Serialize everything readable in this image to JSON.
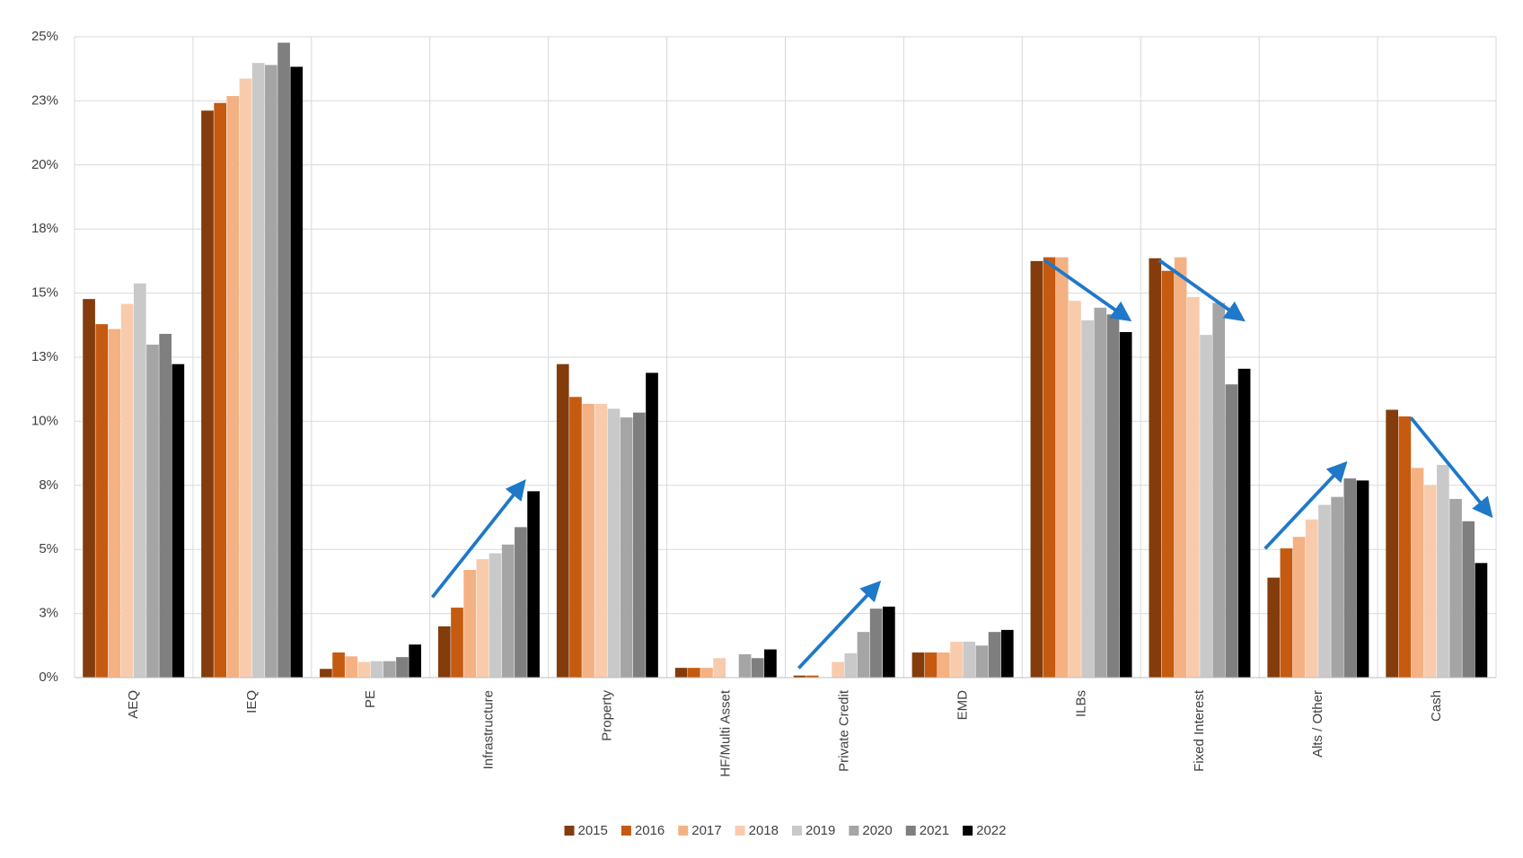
{
  "chart_data": {
    "type": "bar",
    "categories": [
      "AEQ",
      "IEQ",
      "PE",
      "Infrastructure",
      "Property",
      "HF/Multi Asset",
      "Private Credit",
      "EMD",
      "ILBs",
      "Fixed Interest",
      "Alts / Other",
      "Cash"
    ],
    "series": [
      {
        "name": "2015",
        "color": "#843c0c",
        "values": [
          14.77,
          22.12,
          0.34,
          2.0,
          12.23,
          0.38,
          0.08,
          0.98,
          16.25,
          16.36,
          3.9,
          10.45
        ]
      },
      {
        "name": "2016",
        "color": "#c55a11",
        "values": [
          13.79,
          22.42,
          0.98,
          2.73,
          10.95,
          0.38,
          0.08,
          0.98,
          16.4,
          15.87,
          5.04,
          10.19
        ]
      },
      {
        "name": "2017",
        "color": "#f4b183",
        "values": [
          13.6,
          22.69,
          0.83,
          4.2,
          10.68,
          0.38,
          0,
          0.98,
          16.4,
          16.4,
          5.49,
          8.18
        ]
      },
      {
        "name": "2018",
        "color": "#f8cbad",
        "values": [
          14.58,
          23.37,
          0.61,
          4.62,
          10.68,
          0.76,
          0.61,
          1.4,
          14.7,
          14.85,
          6.17,
          7.5
        ]
      },
      {
        "name": "2019",
        "color": "#c9c9c9",
        "values": [
          15.38,
          23.98,
          0.64,
          4.85,
          10.49,
          0,
          0.95,
          1.4,
          13.94,
          13.37,
          6.74,
          8.3
        ]
      },
      {
        "name": "2020",
        "color": "#a5a5a5",
        "values": [
          12.99,
          23.9,
          0.64,
          5.19,
          10.15,
          0.91,
          1.78,
          1.25,
          14.43,
          14.62,
          7.05,
          6.97
        ]
      },
      {
        "name": "2021",
        "color": "#7f7f7f",
        "values": [
          13.41,
          24.77,
          0.8,
          5.87,
          10.34,
          0.76,
          2.69,
          1.78,
          14.17,
          11.44,
          7.77,
          6.1
        ]
      },
      {
        "name": "2022",
        "color": "#000000",
        "values": [
          12.23,
          23.83,
          1.29,
          7.27,
          11.89,
          1.1,
          2.77,
          1.86,
          13.48,
          12.05,
          7.69,
          4.47
        ]
      }
    ],
    "ylim": [
      0,
      25
    ],
    "yticks": [
      {
        "value": 0,
        "label": "0%"
      },
      {
        "value": 2.5,
        "label": "3%"
      },
      {
        "value": 5,
        "label": "5%"
      },
      {
        "value": 7.5,
        "label": "8%"
      },
      {
        "value": 10,
        "label": "10%"
      },
      {
        "value": 12.5,
        "label": "13%"
      },
      {
        "value": 15,
        "label": "15%"
      },
      {
        "value": 17.5,
        "label": "18%"
      },
      {
        "value": 20,
        "label": "20%"
      },
      {
        "value": 22.5,
        "label": "23%"
      },
      {
        "value": 25,
        "label": "25%"
      }
    ],
    "grid": true,
    "legend": "bottom"
  }
}
